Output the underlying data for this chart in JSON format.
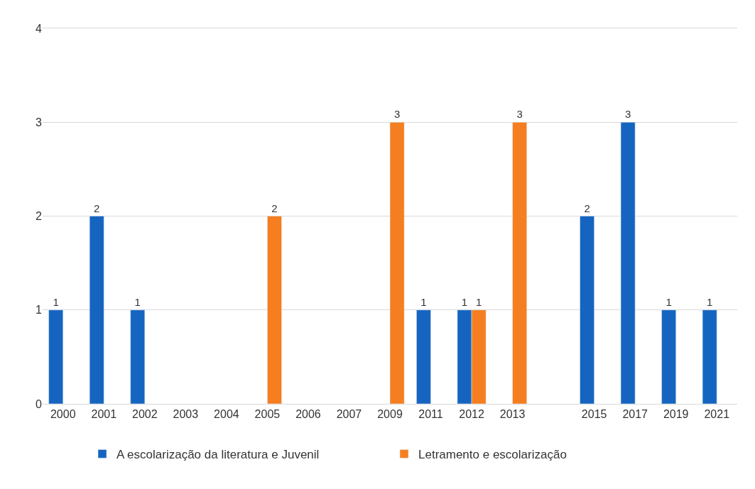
{
  "chart_data": {
    "type": "bar",
    "categories": [
      "2000",
      "2001",
      "2002",
      "2003",
      "2004",
      "2005",
      "2006",
      "2007",
      "2009",
      "2011",
      "2012",
      "2013",
      null,
      "2015",
      "2017",
      "2019",
      "2021"
    ],
    "series": [
      {
        "name": "A escolarização da literatura e Juvenil",
        "color": "#1565c0",
        "values": [
          1,
          2,
          1,
          null,
          null,
          null,
          null,
          null,
          null,
          1,
          1,
          null,
          null,
          2,
          3,
          1,
          1
        ]
      },
      {
        "name": "Letramento e escolarização",
        "color": "#f57f20",
        "values": [
          null,
          null,
          null,
          null,
          null,
          2,
          null,
          null,
          3,
          null,
          1,
          3,
          null,
          null,
          null,
          null,
          null
        ]
      }
    ],
    "ylim": [
      0,
      4
    ],
    "yticks": [
      0,
      1,
      2,
      3,
      4
    ],
    "grid": "y",
    "legend": "bottom",
    "data_labels": true
  }
}
